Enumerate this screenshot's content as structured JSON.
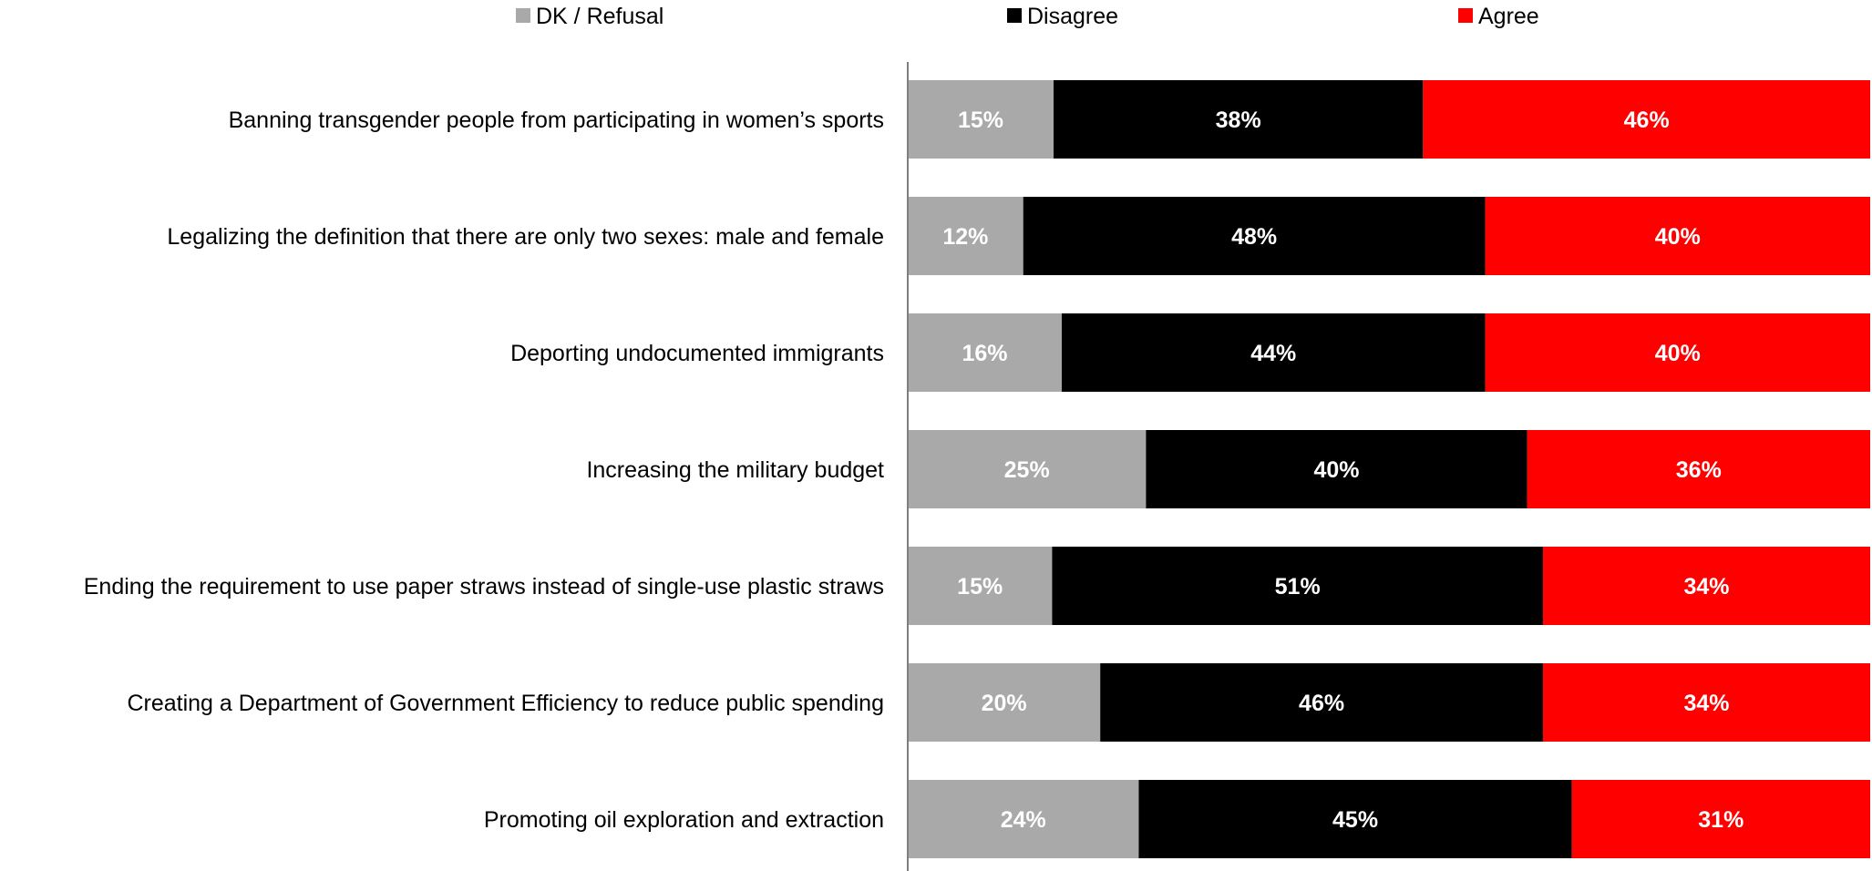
{
  "chart_data": {
    "type": "bar",
    "orientation": "horizontal",
    "stacked": true,
    "percent_stacked": true,
    "legend_position": "top",
    "grid": false,
    "xlim": [
      0,
      100
    ],
    "categories": [
      "Banning transgender people from participating in women’s sports",
      "Legalizing the definition that there are only two sexes: male and female",
      "Deporting undocumented immigrants",
      "Increasing the military budget",
      "Ending the requirement to use paper straws instead of single-use plastic straws",
      "Creating a Department of Government Efficiency to reduce public spending",
      "Promoting oil exploration and extraction"
    ],
    "series": [
      {
        "name": "DK / Refusal",
        "color": "#a9a9a9",
        "values": [
          15,
          12,
          16,
          25,
          15,
          20,
          24
        ],
        "labels": [
          "15%",
          "12%",
          "16%",
          "25%",
          "15%",
          "20%",
          "24%"
        ]
      },
      {
        "name": "Disagree",
        "color": "#000000",
        "values": [
          38,
          48,
          44,
          40,
          51,
          46,
          45
        ],
        "labels": [
          "38%",
          "48%",
          "44%",
          "40%",
          "51%",
          "46%",
          "45%"
        ]
      },
      {
        "name": "Agree",
        "color": "#ff0000",
        "values": [
          46,
          40,
          40,
          36,
          34,
          34,
          31
        ],
        "labels": [
          "46%",
          "40%",
          "40%",
          "36%",
          "34%",
          "34%",
          "31%"
        ]
      }
    ]
  }
}
